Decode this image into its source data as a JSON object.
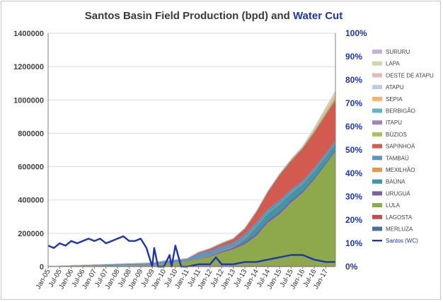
{
  "chart_data": {
    "type": "area",
    "title": "Santos Basin Field Production (bpd) and ",
    "title_accent": "Water Cut",
    "ylim": [
      0,
      1400000
    ],
    "y_ticks": [
      "0",
      "200000",
      "400000",
      "600000",
      "800000",
      "1000000",
      "1200000",
      "1400000"
    ],
    "y2lim": [
      0,
      100
    ],
    "y2_ticks": [
      "0%",
      "10%",
      "20%",
      "30%",
      "40%",
      "50%",
      "60%",
      "70%",
      "80%",
      "90%",
      "100%"
    ],
    "x_ticks": [
      "Jan-05",
      "Jul-05",
      "Jan-06",
      "Jul-06",
      "Jan-07",
      "Jul-07",
      "Jan-08",
      "Jul-08",
      "Jan-09",
      "Jul-09",
      "Jan-10",
      "Jul-10",
      "Jan-11",
      "Jul-11",
      "Jan-12",
      "Jul-12",
      "Jan-13",
      "Jul-13",
      "Jan-14",
      "Jul-14",
      "Jan-15",
      "Jul-15",
      "Jan-16",
      "Jul-16",
      "Jan-17"
    ],
    "x_range": [
      "Jan-05",
      "Jun-17"
    ],
    "legend_position": "right",
    "legend": [
      {
        "name": "SURURU",
        "color": "#c7b3d9"
      },
      {
        "name": "LAPA",
        "color": "#c9dca8"
      },
      {
        "name": "OESTE DE ATAPU",
        "color": "#e7b9b8"
      },
      {
        "name": "ATAPU",
        "color": "#b9cde4"
      },
      {
        "name": "SEPIA",
        "color": "#f4b56c"
      },
      {
        "name": "BERBIGÃO",
        "color": "#63b4c9"
      },
      {
        "name": "ITAPU",
        "color": "#9d86be"
      },
      {
        "name": "BÚZIOS",
        "color": "#a9c45e"
      },
      {
        "name": "SAPINHOÁ",
        "color": "#d35a4f"
      },
      {
        "name": "TAMBAÚ",
        "color": "#5f94c0"
      },
      {
        "name": "MEXILHÃO",
        "color": "#e8964a"
      },
      {
        "name": "BAÚNA",
        "color": "#3f97a6"
      },
      {
        "name": "URUGUÁ",
        "color": "#7d62a0"
      },
      {
        "name": "LULA",
        "color": "#8ea94c"
      },
      {
        "name": "LAGOSTA",
        "color": "#c0504d"
      },
      {
        "name": "MERLUZA",
        "color": "#4b6f9e"
      },
      {
        "name": "Santos (WC)",
        "color": "#1f35b0",
        "line": true
      }
    ],
    "series": [
      {
        "name": "MERLUZA",
        "color": "#4b6f9e",
        "x": [
          "Jan-05",
          "Jan-09",
          "Jan-10",
          "Jan-11",
          "Jan-12",
          "Jan-13",
          "Jan-14",
          "Jan-15",
          "Jan-16",
          "Jun-17"
        ],
        "values": [
          3000,
          3000,
          3000,
          4000,
          4000,
          4000,
          4000,
          4000,
          3000,
          3000
        ]
      },
      {
        "name": "LAGOSTA",
        "color": "#c0504d",
        "x": [
          "Jan-05",
          "Jan-09",
          "Jan-10",
          "Jan-11",
          "Jan-12",
          "Jan-13",
          "Jan-14",
          "Jan-15",
          "Jan-16",
          "Jun-17"
        ],
        "values": [
          0,
          1000,
          1000,
          1000,
          1000,
          1000,
          1000,
          1000,
          1000,
          1000
        ]
      },
      {
        "name": "LULA",
        "color": "#8ea94c",
        "x": [
          "Jan-05",
          "Jul-09",
          "Jan-10",
          "Jul-10",
          "Jan-11",
          "Jul-11",
          "Jan-12",
          "Jul-12",
          "Jan-13",
          "Jul-13",
          "Jan-14",
          "Jul-14",
          "Jan-15",
          "Jul-15",
          "Jan-16",
          "Jul-16",
          "Jan-17",
          "Jun-17"
        ],
        "values": [
          0,
          5000,
          15000,
          20000,
          25000,
          40000,
          55000,
          80000,
          100000,
          130000,
          180000,
          260000,
          310000,
          380000,
          440000,
          520000,
          610000,
          690000
        ]
      },
      {
        "name": "URUGUÁ",
        "color": "#7d62a0",
        "x": [
          "Jan-05",
          "Jan-11",
          "Jan-12",
          "Jan-13",
          "Jan-14",
          "Jan-15",
          "Jan-16",
          "Jun-17"
        ],
        "values": [
          0,
          0,
          5000,
          10000,
          15000,
          15000,
          12000,
          10000
        ]
      },
      {
        "name": "BAÚNA",
        "color": "#3f97a6",
        "x": [
          "Jan-05",
          "Jan-13",
          "Jul-13",
          "Jan-14",
          "Jan-15",
          "Jan-16",
          "Jun-17"
        ],
        "values": [
          0,
          0,
          20000,
          40000,
          45000,
          40000,
          35000
        ]
      },
      {
        "name": "MEXILHÃO",
        "color": "#e8964a",
        "x": [
          "Jan-05",
          "Jan-11",
          "Jan-13",
          "Jan-15",
          "Jun-17"
        ],
        "values": [
          0,
          2000,
          3000,
          3000,
          2000
        ]
      },
      {
        "name": "TAMBAÚ",
        "color": "#5f94c0",
        "x": [
          "Jan-05",
          "Jan-11",
          "Jul-11",
          "Jan-12",
          "Jan-13",
          "Jan-14",
          "Jan-15",
          "Jan-16",
          "Jun-17"
        ],
        "values": [
          0,
          15000,
          30000,
          30000,
          28000,
          25000,
          22000,
          20000,
          18000
        ]
      },
      {
        "name": "SAPINHOÁ",
        "color": "#d35a4f",
        "x": [
          "Jan-05",
          "Jan-11",
          "Jan-12",
          "Jan-13",
          "Jul-13",
          "Jan-14",
          "Jul-14",
          "Jan-15",
          "Jul-15",
          "Jan-16",
          "Jul-16",
          "Jan-17",
          "Jun-17"
        ],
        "values": [
          0,
          0,
          10000,
          20000,
          30000,
          60000,
          100000,
          150000,
          170000,
          190000,
          210000,
          230000,
          240000
        ]
      },
      {
        "name": "BÚZIOS",
        "color": "#a9c45e",
        "x": [
          "Jan-05",
          "Jan-12",
          "Jan-14",
          "Jan-16",
          "Jul-16",
          "Jan-17",
          "Jun-17"
        ],
        "values": [
          0,
          0,
          1000,
          3000,
          4000,
          5000,
          6000
        ]
      },
      {
        "name": "ITAPU",
        "color": "#9d86be",
        "x": [
          "Jan-05",
          "Jan-16",
          "Jun-17"
        ],
        "values": [
          0,
          1000,
          2000
        ]
      },
      {
        "name": "BERBIGÃO",
        "color": "#63b4c9",
        "x": [
          "Jan-05",
          "Jan-16",
          "Jun-17"
        ],
        "values": [
          0,
          2000,
          4000
        ]
      },
      {
        "name": "SEPIA",
        "color": "#f4b56c",
        "x": [
          "Jan-05",
          "Jan-15",
          "Jan-16",
          "Jul-16",
          "Jan-17",
          "Jun-17"
        ],
        "values": [
          0,
          0,
          5000,
          8000,
          15000,
          20000
        ]
      },
      {
        "name": "ATAPU",
        "color": "#b9cde4",
        "x": [
          "Jan-05",
          "Jan-16",
          "Jun-17"
        ],
        "values": [
          0,
          0,
          3000
        ]
      },
      {
        "name": "OESTE DE ATAPU",
        "color": "#e7b9b8",
        "x": [
          "Jan-05",
          "Jan-16",
          "Jun-17"
        ],
        "values": [
          0,
          0,
          2000
        ]
      },
      {
        "name": "LAPA",
        "color": "#c9dca8",
        "x": [
          "Jan-05",
          "Jan-16",
          "Jul-16",
          "Jan-17",
          "Jun-17"
        ],
        "values": [
          0,
          3000,
          8000,
          12000,
          15000
        ]
      },
      {
        "name": "SURURU",
        "color": "#c7b3d9",
        "x": [
          "Jan-05",
          "Jan-16",
          "Jun-17"
        ],
        "values": [
          0,
          1000,
          3000
        ]
      }
    ],
    "water_cut": {
      "name": "Santos (WC)",
      "color": "#1f35b0",
      "axis": "right",
      "x": [
        "Jan-05",
        "Apr-05",
        "Jul-05",
        "Oct-05",
        "Jan-06",
        "Apr-06",
        "Jul-06",
        "Oct-06",
        "Jan-07",
        "Apr-07",
        "Jul-07",
        "Oct-07",
        "Jan-08",
        "Apr-08",
        "Jul-08",
        "Oct-08",
        "Jan-09",
        "Apr-09",
        "Jul-09",
        "Aug-09",
        "Oct-09",
        "Jan-10",
        "Apr-10",
        "May-10",
        "Jul-10",
        "Oct-10",
        "Jan-11",
        "Jul-11",
        "Jan-12",
        "Apr-12",
        "Jul-12",
        "Jan-13",
        "Jul-13",
        "Jan-14",
        "Jul-14",
        "Jan-15",
        "Jul-15",
        "Jan-16",
        "Apr-16",
        "Jul-16",
        "Jan-17",
        "Jun-17"
      ],
      "values": [
        9,
        8,
        10,
        9,
        11,
        10,
        11,
        12,
        11,
        12,
        10,
        11,
        12,
        13,
        11,
        11,
        12,
        8,
        0,
        8,
        0,
        0,
        5,
        0,
        9,
        0,
        0,
        1,
        1,
        4,
        1,
        1,
        2,
        2,
        3,
        4,
        5,
        5,
        4,
        3,
        2,
        2
      ]
    }
  }
}
